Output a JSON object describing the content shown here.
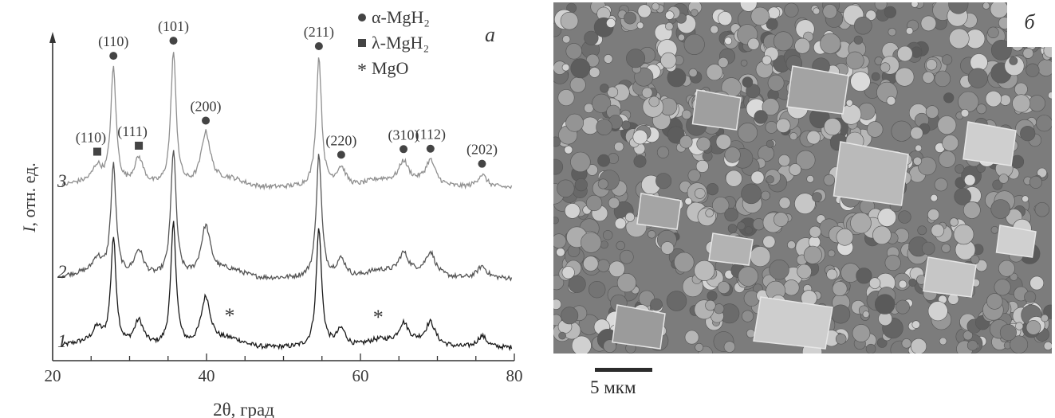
{
  "chart_data": {
    "type": "line",
    "panel_letter": "а",
    "xlabel": "2θ, град",
    "ylabel": "I, отн. ед.",
    "xlim": [
      20,
      80
    ],
    "xticks": [
      "20",
      "40",
      "60",
      "80"
    ],
    "legend": {
      "placement": "top-right",
      "entries": [
        {
          "marker": "circle",
          "label": "α-MgH₂"
        },
        {
          "marker": "square",
          "label": "λ-MgH₂"
        },
        {
          "marker": "asterisk",
          "label": "MgO"
        }
      ]
    },
    "series": [
      {
        "name": "1",
        "label": "1",
        "baseline": 0.0
      },
      {
        "name": "2",
        "label": "2",
        "baseline": 0.8
      },
      {
        "name": "3",
        "label": "3",
        "baseline": 1.55
      }
    ],
    "peaks": [
      {
        "position": 25.8,
        "intensity": 0.16,
        "phase": "λ-MgH2",
        "hkl": "(110)"
      },
      {
        "position": 27.9,
        "intensity": 1.1,
        "phase": "α-MgH2",
        "hkl": "(110)"
      },
      {
        "position": 31.2,
        "intensity": 0.26,
        "phase": "λ-MgH2",
        "hkl": "(111)"
      },
      {
        "position": 35.7,
        "intensity": 1.26,
        "phase": "α-MgH2",
        "hkl": "(101)"
      },
      {
        "position": 39.9,
        "intensity": 0.5,
        "phase": "α-MgH2",
        "hkl": "(200)"
      },
      {
        "position": 54.6,
        "intensity": 1.22,
        "phase": "α-MgH2",
        "hkl": "(211)"
      },
      {
        "position": 57.5,
        "intensity": 0.18,
        "phase": "α-MgH2",
        "hkl": "(220)"
      },
      {
        "position": 65.6,
        "intensity": 0.2,
        "phase": "α-MgH2",
        "hkl": "(310)"
      },
      {
        "position": 69.1,
        "intensity": 0.22,
        "phase": "α-MgH2",
        "hkl": "(112)"
      },
      {
        "position": 75.8,
        "intensity": 0.12,
        "phase": "α-MgH2",
        "hkl": "(202)"
      }
    ],
    "mgo_markers": [
      {
        "position": 43.0,
        "label": "*"
      },
      {
        "position": 62.3,
        "label": "*"
      }
    ],
    "colors": {
      "curve1": "#1a1a1a",
      "curve2": "#555555",
      "curve3": "#8f8f8f",
      "marker": "#444444",
      "axis": "#333333"
    }
  },
  "sem_image": {
    "panel_letter": "б",
    "scale_label": "5 мкм"
  }
}
